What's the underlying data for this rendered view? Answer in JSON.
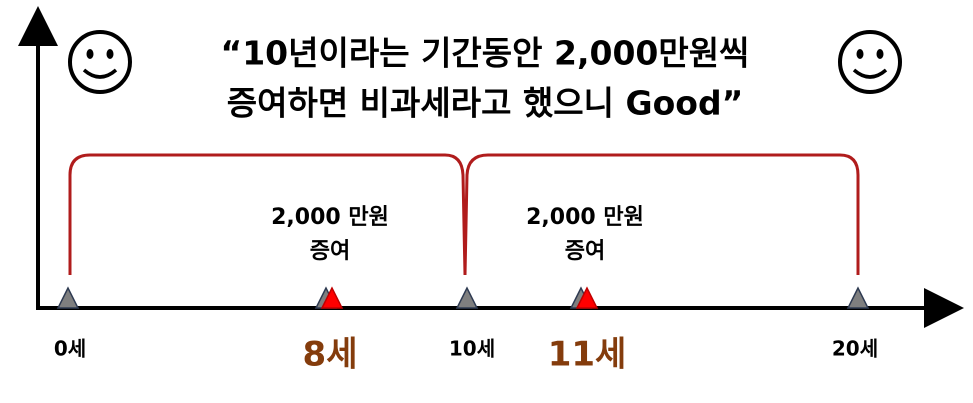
{
  "title": {
    "lines": [
      "“10년이라는 기간동안 2,000만원씩",
      "증여하면 비과세라고 했으니 Good”"
    ]
  },
  "gifts": [
    {
      "amount": "2,000 만원",
      "action": "증여"
    },
    {
      "amount": "2,000 만원",
      "action": "증여"
    }
  ],
  "ages": [
    "0세",
    "8세",
    "10세",
    "11세",
    "20세"
  ]
}
